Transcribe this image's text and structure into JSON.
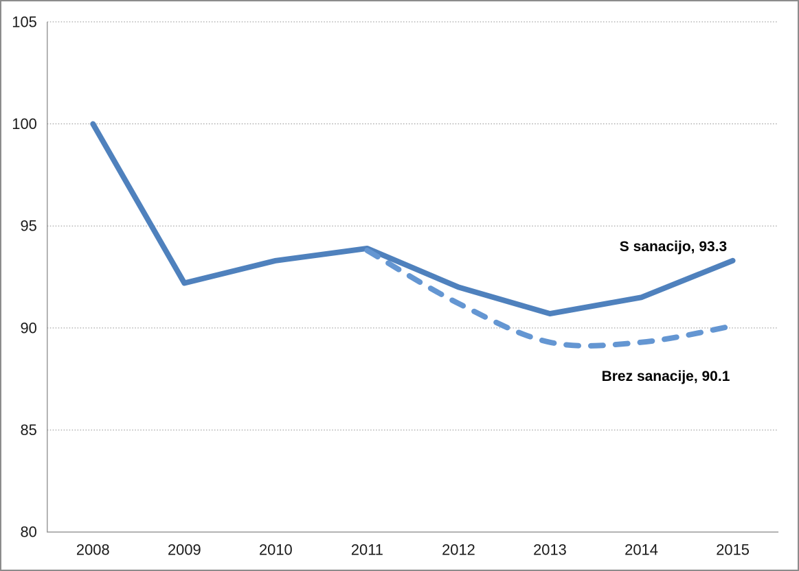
{
  "window": {
    "background_color": "#FFFFFF",
    "border_color": "#8C8C8C"
  },
  "chart_data": {
    "type": "line",
    "title": "",
    "xlabel": "",
    "ylabel": "",
    "categories": [
      "2008",
      "2009",
      "2010",
      "2011",
      "2012",
      "2013",
      "2014",
      "2015"
    ],
    "series": [
      {
        "name": "S sanacijo",
        "values": [
          100.0,
          92.2,
          93.3,
          93.9,
          92.0,
          90.7,
          91.5,
          93.3
        ],
        "color": "#4F81BD",
        "line_style": "solid",
        "end_label": "S sanacijo, 93.3"
      },
      {
        "name": "Brez sanacije",
        "values": [
          null,
          null,
          null,
          93.8,
          91.2,
          89.3,
          89.3,
          90.1
        ],
        "color": "#6496D2",
        "line_style": "dashed",
        "end_label": "Brez sanacije, 90.1"
      }
    ],
    "ylim": [
      80,
      105
    ],
    "yticks": [
      80,
      85,
      90,
      95,
      100,
      105
    ],
    "grid": "horizontal dotted",
    "legend_position": "none",
    "axis_text_color": "#1A1A1A",
    "gridline_color": "#8F8F8F",
    "axis_line_color": "#9A9A9A",
    "line_width": 8
  }
}
